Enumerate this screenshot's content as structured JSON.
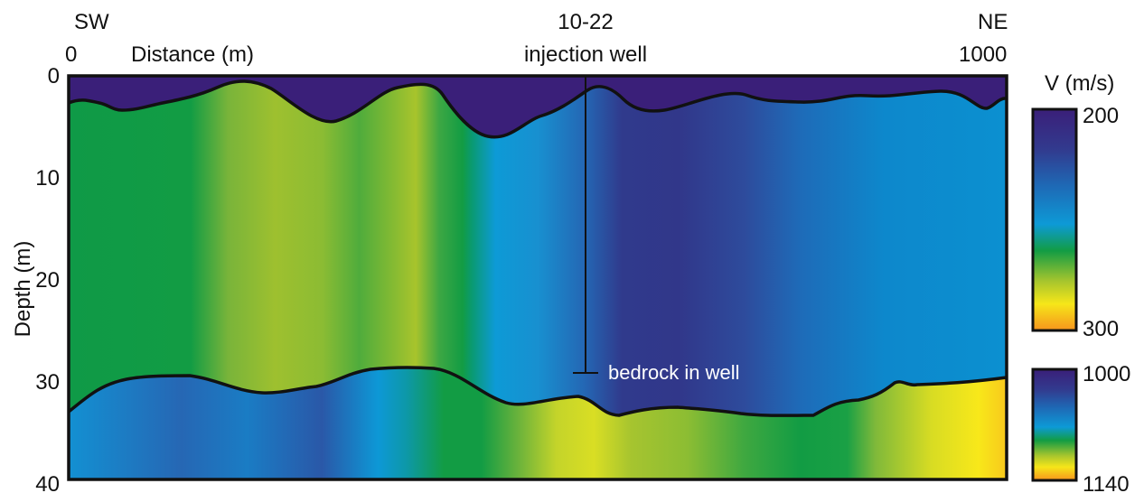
{
  "header": {
    "left_direction": "SW",
    "right_direction": "NE",
    "x_start": "0",
    "x_end": "1000",
    "x_axis_label": "Distance (m)",
    "well_name": "10-22",
    "well_type": "injection well"
  },
  "y_axis": {
    "label": "Depth (m)",
    "ticks": [
      "0",
      "10",
      "20",
      "30",
      "40"
    ],
    "tick_values": [
      0,
      10,
      20,
      30,
      40
    ],
    "range": [
      0,
      40
    ]
  },
  "annotation": {
    "bedrock_label": "bedrock in well",
    "well_bottom_depth_m": 29.7,
    "well_position_m": 512
  },
  "colorbar_top": {
    "title": "V (m/s)",
    "max_label": "200",
    "min_label": "300",
    "range": [
      200,
      300
    ]
  },
  "colorbar_bottom": {
    "max_label": "1000",
    "min_label": "1140",
    "range": [
      1000,
      1140
    ]
  },
  "colors": {
    "purple": "#3a1f79",
    "blue": "#1f64b3",
    "light_blue": "#0d9ad6",
    "green": "#129c44",
    "yellow_green": "#9ec02f",
    "yellow": "#f6e619",
    "orange": "#f7941d",
    "outline": "#111111"
  }
}
